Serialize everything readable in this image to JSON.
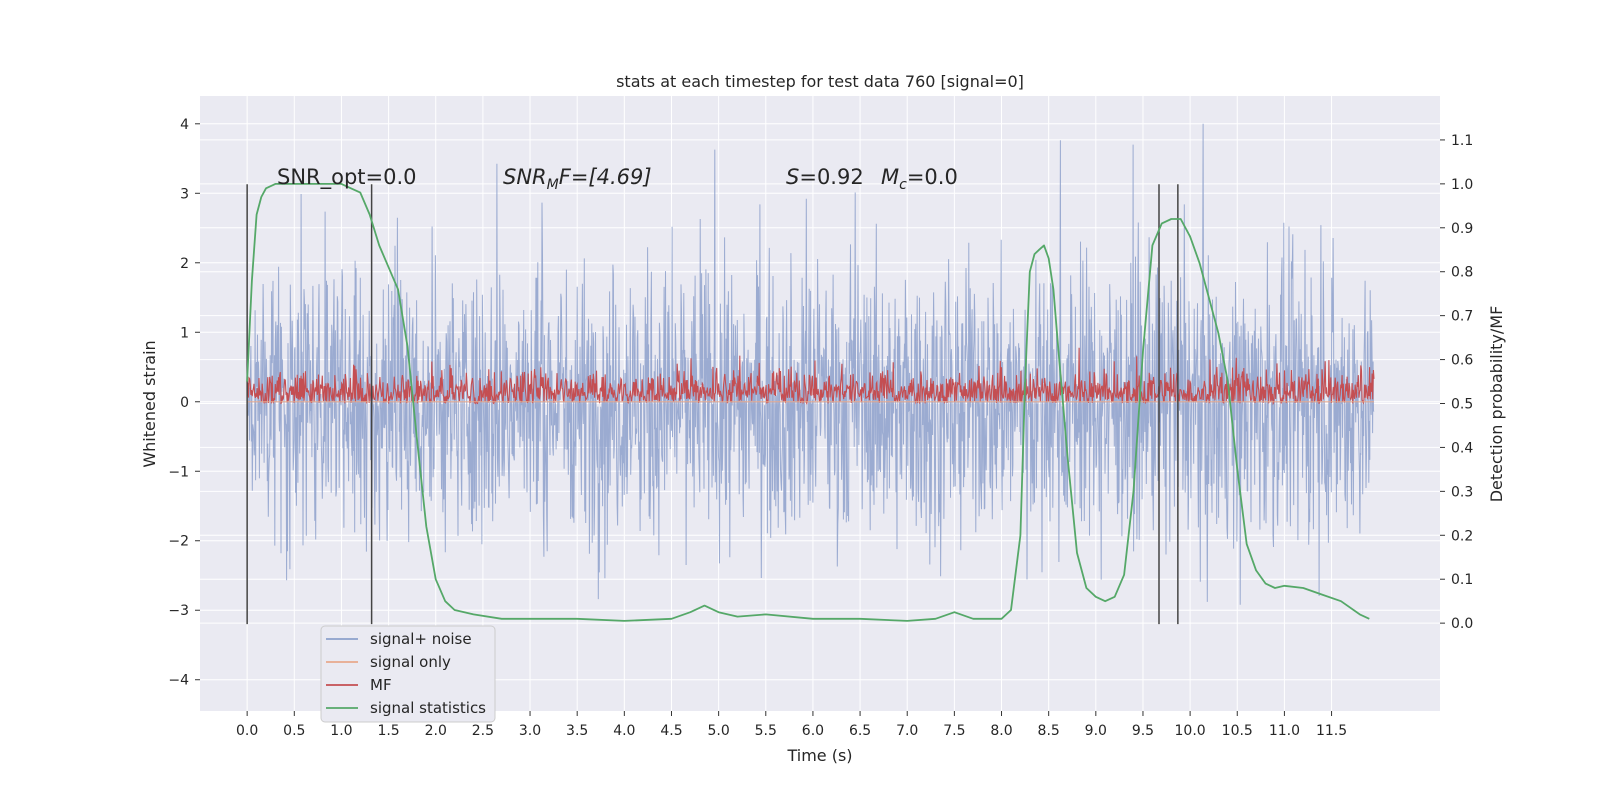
{
  "chart_data": {
    "type": "line",
    "title": "stats at each timestep for test data 760 [signal=0]",
    "xlabel": "Time (s)",
    "ylabel_left": "Whitened strain",
    "ylabel_right": "Detection probability/MF",
    "xlim": [
      -0.5,
      12.65
    ],
    "ylim_left": [
      -4.45,
      4.4
    ],
    "ylim_right": [
      -0.2,
      1.2
    ],
    "x_ticks": [
      "0.0",
      "0.5",
      "1.0",
      "1.5",
      "2.0",
      "2.5",
      "3.0",
      "3.5",
      "4.0",
      "4.5",
      "5.0",
      "5.5",
      "6.0",
      "6.5",
      "7.0",
      "7.5",
      "8.0",
      "8.5",
      "9.0",
      "9.5",
      "10.0",
      "10.5",
      "11.0",
      "11.5"
    ],
    "y_ticks_left": [
      "4",
      "3",
      "2",
      "1",
      "0",
      "−1",
      "−2",
      "−3",
      "−4"
    ],
    "y_ticks_right": [
      "1.1",
      "1.0",
      "0.9",
      "0.8",
      "0.7",
      "0.6",
      "0.5",
      "0.4",
      "0.3",
      "0.2",
      "0.1",
      "0.0"
    ],
    "annotations": {
      "snr_opt": "SNR_opt=0.0",
      "snr_mf_name": "SNR",
      "snr_mf_sub": "M",
      "snr_mf_rest": "F=[4.69]",
      "s_name": "S",
      "s_rest": "=0.92",
      "mc_name": "M",
      "mc_sub": "c",
      "mc_rest": "=0.0"
    },
    "colors": {
      "signal_noise": "#8da0cb",
      "signal_only": "#e8a98c",
      "mf": "#c44e52",
      "signal_statistics": "#55a868",
      "vlines": "#444444",
      "background": "#eaeaf2",
      "grid": "#ffffff"
    },
    "vertical_lines_x": [
      0.0,
      1.32,
      9.67,
      9.87
    ],
    "series": [
      {
        "name": "signal+ noise",
        "axis": "left",
        "description_range": [
          -3.3,
          4.0
        ]
      },
      {
        "name": "signal only",
        "axis": "left",
        "x": [
          0.0,
          11.95
        ],
        "y": [
          0,
          0
        ]
      },
      {
        "name": "MF",
        "axis": "right",
        "range": [
          0.5,
          0.65
        ]
      },
      {
        "name": "signal statistics",
        "axis": "right",
        "x": [
          0.0,
          0.05,
          0.1,
          0.15,
          0.2,
          0.3,
          0.5,
          0.8,
          1.0,
          1.1,
          1.2,
          1.3,
          1.4,
          1.5,
          1.6,
          1.7,
          1.8,
          1.9,
          2.0,
          2.1,
          2.2,
          2.4,
          2.7,
          3.0,
          3.5,
          4.0,
          4.5,
          4.7,
          4.85,
          5.0,
          5.2,
          5.5,
          6.0,
          6.5,
          7.0,
          7.3,
          7.5,
          7.7,
          8.0,
          8.1,
          8.2,
          8.25,
          8.3,
          8.35,
          8.4,
          8.45,
          8.5,
          8.55,
          8.6,
          8.7,
          8.8,
          8.9,
          9.0,
          9.1,
          9.2,
          9.3,
          9.4,
          9.5,
          9.6,
          9.7,
          9.8,
          9.9,
          10.0,
          10.1,
          10.2,
          10.3,
          10.4,
          10.5,
          10.6,
          10.7,
          10.8,
          10.9,
          11.0,
          11.2,
          11.4,
          11.6,
          11.8,
          11.9
        ],
        "y": [
          0.55,
          0.78,
          0.93,
          0.97,
          0.99,
          1.0,
          1.0,
          1.0,
          1.0,
          0.99,
          0.98,
          0.93,
          0.86,
          0.81,
          0.76,
          0.63,
          0.42,
          0.22,
          0.1,
          0.05,
          0.03,
          0.02,
          0.01,
          0.01,
          0.01,
          0.005,
          0.01,
          0.025,
          0.04,
          0.025,
          0.015,
          0.02,
          0.01,
          0.01,
          0.005,
          0.01,
          0.025,
          0.01,
          0.01,
          0.03,
          0.2,
          0.55,
          0.8,
          0.84,
          0.85,
          0.86,
          0.83,
          0.76,
          0.63,
          0.38,
          0.16,
          0.08,
          0.06,
          0.05,
          0.06,
          0.11,
          0.3,
          0.62,
          0.86,
          0.91,
          0.92,
          0.92,
          0.88,
          0.82,
          0.74,
          0.66,
          0.55,
          0.35,
          0.18,
          0.12,
          0.09,
          0.08,
          0.085,
          0.08,
          0.065,
          0.05,
          0.02,
          0.01
        ]
      }
    ],
    "legend": {
      "position": "lower-left",
      "entries": [
        "signal+ noise",
        "signal only",
        "MF",
        "signal statistics"
      ]
    },
    "grid": true
  }
}
